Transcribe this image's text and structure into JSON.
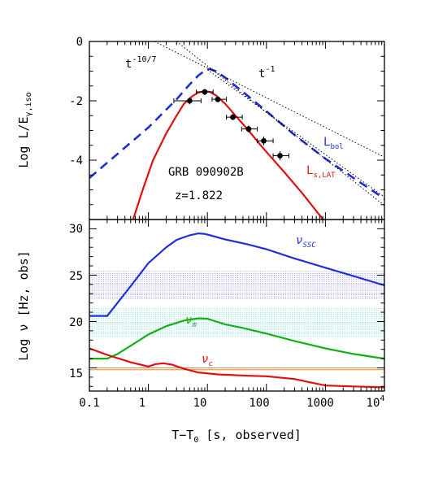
{
  "colors": {
    "axis": "#000000",
    "l_bol": "#1f2fd6",
    "l_lat": "#e01010",
    "nu_ssc": "#1f2fd6",
    "nu_m": "#12b012",
    "nu_c": "#e01010",
    "band_ssc": "#6a6af0",
    "band_m": "#40d0d0",
    "band_c": "#e08a3a",
    "powerlaw": "#000000"
  },
  "chart_data": [
    {
      "id": "top",
      "type": "line",
      "xlabel": "",
      "ylabel": "Log L/E",
      "ylabel_sub": "γ,iso",
      "xscale": "log",
      "xlim": [
        0.1,
        10000
      ],
      "ylim": [
        -6,
        0
      ],
      "yticks": [
        0,
        -2,
        -4
      ],
      "annotations": {
        "pl1": {
          "base": "t",
          "exp": "-10/7"
        },
        "pl2": {
          "base": "t",
          "exp": "-1"
        },
        "grb": "GRB 090902B",
        "z": "z=1.822",
        "lbol": {
          "base": "L",
          "sub": "bol"
        },
        "llat": {
          "base": "L",
          "sub": "s,LAT"
        }
      },
      "series": [
        {
          "key": "l_bol",
          "style": "dashed",
          "x": [
            0.1,
            1,
            3,
            5,
            7,
            9,
            11,
            14,
            20,
            40,
            100,
            300,
            1000,
            3000,
            10000
          ],
          "y": [
            -4.6,
            -2.9,
            -1.95,
            -1.45,
            -1.15,
            -0.98,
            -0.93,
            -1.0,
            -1.22,
            -1.7,
            -2.35,
            -3.15,
            -3.95,
            -4.6,
            -5.3
          ]
        },
        {
          "key": "l_lat",
          "style": "solid",
          "x": [
            0.55,
            0.8,
            1.2,
            2,
            3,
            4,
            5.5,
            7,
            9,
            11,
            14,
            20,
            30,
            50,
            80,
            120,
            200,
            400,
            1000
          ],
          "y": [
            -6,
            -5.0,
            -4.0,
            -3.1,
            -2.5,
            -2.1,
            -1.85,
            -1.72,
            -1.67,
            -1.7,
            -1.82,
            -2.1,
            -2.5,
            -3.0,
            -3.5,
            -3.9,
            -4.4,
            -5.1,
            -6.1
          ]
        },
        {
          "key": "pl1",
          "style": "dotted",
          "x": [
            10,
            10000
          ],
          "y": [
            -0.95,
            -5.24
          ]
        },
        {
          "key": "pl2",
          "style": "dotted",
          "x": [
            1.27,
            10000
          ],
          "y": [
            0,
            -3.9
          ]
        },
        {
          "key": "pl3",
          "style": "dotted",
          "x": [
            3.0,
            10000
          ],
          "y": [
            0,
            -5.53
          ]
        }
      ],
      "points": {
        "x": [
          5,
          9,
          15,
          27,
          50,
          90,
          170
        ],
        "y": [
          -2.0,
          -1.7,
          -1.95,
          -2.55,
          -2.95,
          -3.35,
          -3.85
        ],
        "xerr_lo": [
          2.3,
          2.5,
          3,
          6,
          12,
          20,
          40
        ],
        "xerr_hi": [
          2.8,
          3.5,
          6,
          12,
          20,
          40,
          70
        ],
        "yerr": [
          0.12,
          0.1,
          0.1,
          0.1,
          0.12,
          0.15,
          0.15
        ]
      }
    },
    {
      "id": "bottom",
      "type": "line",
      "xlabel": "T−T",
      "xlabel_sub": "0",
      "xlabel_rest": "[s, observed]",
      "ylabel": "Log ν [Hz, obs]",
      "xscale": "log",
      "xlim": [
        0.1,
        10000
      ],
      "ylim": [
        12.5,
        31
      ],
      "yticks": [
        15,
        20,
        25,
        30
      ],
      "xtick_labels": [
        "0.1",
        "1",
        "10",
        "100",
        "1000",
        "10"
      ],
      "xtick_last_exp": "4",
      "annotations": {
        "nu_ssc": {
          "base": "ν",
          "sub": "SSC"
        },
        "nu_m": {
          "base": "ν",
          "sub": "m"
        },
        "nu_c": {
          "base": "ν",
          "sub": "c"
        }
      },
      "bands": [
        {
          "key": "band_ssc",
          "y": [
            22.3,
            25.4
          ]
        },
        {
          "key": "band_m",
          "y": [
            18.3,
            21.4
          ]
        },
        {
          "key": "band_c",
          "y": [
            14.8,
            15.0
          ]
        }
      ],
      "series": [
        {
          "key": "nu_ssc",
          "x": [
            0.1,
            0.2,
            0.5,
            1,
            2,
            3,
            5,
            7,
            9,
            12,
            20,
            50,
            100,
            300,
            1000,
            3000,
            10000
          ],
          "y": [
            20.6,
            20.6,
            23.8,
            26.3,
            28.0,
            28.8,
            29.3,
            29.5,
            29.45,
            29.25,
            28.85,
            28.3,
            27.8,
            26.8,
            25.8,
            24.9,
            23.9
          ]
        },
        {
          "key": "nu_m",
          "x": [
            0.1,
            0.2,
            0.3,
            0.6,
            1,
            2,
            4,
            7,
            10,
            14,
            20,
            40,
            100,
            300,
            1000,
            3000,
            10000
          ],
          "y": [
            16.0,
            16.0,
            16.5,
            17.7,
            18.6,
            19.5,
            20.1,
            20.35,
            20.3,
            20.0,
            19.7,
            19.3,
            18.7,
            17.9,
            17.1,
            16.5,
            16.0
          ]
        },
        {
          "key": "nu_c",
          "x": [
            0.1,
            0.2,
            0.5,
            1,
            1.3,
            1.8,
            2.5,
            4,
            7,
            15,
            50,
            100,
            300,
            1000,
            3000,
            10000
          ],
          "y": [
            17.1,
            16.4,
            15.6,
            15.15,
            15.4,
            15.5,
            15.35,
            14.9,
            14.5,
            14.3,
            14.15,
            14.1,
            13.8,
            13.1,
            13.0,
            12.9
          ]
        }
      ]
    }
  ]
}
